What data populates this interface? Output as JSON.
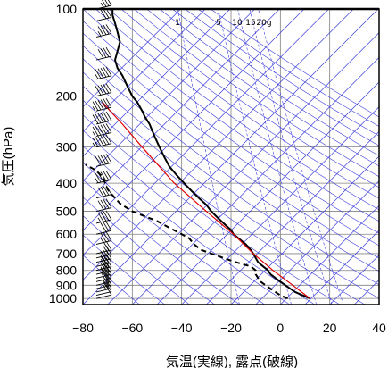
{
  "chart_data": {
    "type": "line",
    "chart_kind": "skew-T log-P (emagram)",
    "xlabel": "気温(実線), 露点(破線)",
    "ylabel": "気圧(hPa)",
    "xlim": [
      -80,
      40
    ],
    "ylim": [
      1050,
      100
    ],
    "y_scale": "log",
    "x_ticks": [
      "−80",
      "−60",
      "−40",
      "−20",
      "0",
      "20",
      "40"
    ],
    "x_tick_values": [
      -80,
      -60,
      -40,
      -20,
      0,
      20,
      40
    ],
    "y_ticks": [
      "100",
      "200",
      "300",
      "400",
      "500",
      "600",
      "700",
      "800",
      "900",
      "1000"
    ],
    "y_tick_values": [
      100,
      200,
      300,
      400,
      500,
      600,
      700,
      800,
      900,
      1000
    ],
    "mixing_ratio_labels": [
      {
        "text": "1",
        "value": 1
      },
      {
        "text": "5",
        "value": 5
      },
      {
        "text": "10",
        "value": 10
      },
      {
        "text": "15",
        "value": 15
      },
      {
        "text": "20g",
        "value": 20
      }
    ],
    "grid": true,
    "colors": {
      "temperature": "#000000",
      "dewpoint": "#000000",
      "parcel": "#e00000",
      "background_lines": "#3b3bdc",
      "grid": "#7f7f7f"
    },
    "series": [
      {
        "style": "solid",
        "points": [
          {
            "p": 1000,
            "t": 12
          },
          {
            "p": 975,
            "t": 9
          },
          {
            "p": 950,
            "t": 6
          },
          {
            "p": 925,
            "t": 4
          },
          {
            "p": 900,
            "t": 2
          },
          {
            "p": 875,
            "t": 0
          },
          {
            "p": 850,
            "t": -2
          },
          {
            "p": 825,
            "t": -4
          },
          {
            "p": 800,
            "t": -5
          },
          {
            "p": 775,
            "t": -7
          },
          {
            "p": 750,
            "t": -9
          },
          {
            "p": 725,
            "t": -10
          },
          {
            "p": 700,
            "t": -11
          },
          {
            "p": 680,
            "t": -12
          },
          {
            "p": 650,
            "t": -14
          },
          {
            "p": 620,
            "t": -17
          },
          {
            "p": 600,
            "t": -19
          },
          {
            "p": 580,
            "t": -20
          },
          {
            "p": 560,
            "t": -22
          },
          {
            "p": 540,
            "t": -24
          },
          {
            "p": 520,
            "t": -26
          },
          {
            "p": 500,
            "t": -28
          },
          {
            "p": 475,
            "t": -30
          },
          {
            "p": 450,
            "t": -33
          },
          {
            "p": 425,
            "t": -36
          },
          {
            "p": 400,
            "t": -39
          },
          {
            "p": 375,
            "t": -42
          },
          {
            "p": 350,
            "t": -45
          },
          {
            "p": 325,
            "t": -47
          },
          {
            "p": 300,
            "t": -49
          },
          {
            "p": 275,
            "t": -51
          },
          {
            "p": 250,
            "t": -53
          },
          {
            "p": 235,
            "t": -55
          },
          {
            "p": 225,
            "t": -56
          },
          {
            "p": 210,
            "t": -58
          },
          {
            "p": 200,
            "t": -60
          },
          {
            "p": 185,
            "t": -62
          },
          {
            "p": 170,
            "t": -64
          },
          {
            "p": 160,
            "t": -66
          },
          {
            "p": 150,
            "t": -67
          },
          {
            "p": 140,
            "t": -66
          },
          {
            "p": 130,
            "t": -65
          },
          {
            "p": 120,
            "t": -66
          },
          {
            "p": 112,
            "t": -67
          },
          {
            "p": 105,
            "t": -68
          },
          {
            "p": 100,
            "t": -68
          }
        ]
      },
      {
        "style": "dashed",
        "points": [
          {
            "p": 1000,
            "t": 3
          },
          {
            "p": 975,
            "t": 0
          },
          {
            "p": 950,
            "t": -2
          },
          {
            "p": 925,
            "t": -4
          },
          {
            "p": 900,
            "t": -6
          },
          {
            "p": 875,
            "t": -8
          },
          {
            "p": 850,
            "t": -9
          },
          {
            "p": 825,
            "t": -10
          },
          {
            "p": 800,
            "t": -10
          },
          {
            "p": 775,
            "t": -12
          },
          {
            "p": 750,
            "t": -18
          },
          {
            "p": 725,
            "t": -23
          },
          {
            "p": 700,
            "t": -28
          },
          {
            "p": 680,
            "t": -32
          },
          {
            "p": 650,
            "t": -35
          },
          {
            "p": 620,
            "t": -37
          },
          {
            "p": 600,
            "t": -40
          },
          {
            "p": 570,
            "t": -45
          },
          {
            "p": 540,
            "t": -50
          },
          {
            "p": 520,
            "t": -55
          },
          {
            "p": 500,
            "t": -60
          },
          {
            "p": 470,
            "t": -65
          },
          {
            "p": 440,
            "t": -68
          },
          {
            "p": 420,
            "t": -70
          },
          {
            "p": 400,
            "t": -71
          },
          {
            "p": 380,
            "t": -72
          },
          {
            "p": 360,
            "t": -75
          },
          {
            "p": 345,
            "t": -79
          }
        ]
      },
      {
        "style": "parcel",
        "points": [
          {
            "p": 1000,
            "t": 12
          },
          {
            "p": 900,
            "t": 5
          },
          {
            "p": 800,
            "t": -3
          },
          {
            "p": 700,
            "t": -11
          },
          {
            "p": 600,
            "t": -19
          },
          {
            "p": 500,
            "t": -30
          },
          {
            "p": 400,
            "t": -43
          },
          {
            "p": 300,
            "t": -56
          },
          {
            "p": 250,
            "t": -64
          },
          {
            "p": 225,
            "t": -69
          },
          {
            "p": 210,
            "t": -72
          }
        ]
      }
    ],
    "wind_barbs": [
      {
        "p": 1000,
        "speed_kt": 10
      },
      {
        "p": 975,
        "speed_kt": 10
      },
      {
        "p": 950,
        "speed_kt": 15
      },
      {
        "p": 925,
        "speed_kt": 15
      },
      {
        "p": 900,
        "speed_kt": 20
      },
      {
        "p": 875,
        "speed_kt": 20
      },
      {
        "p": 850,
        "speed_kt": 25
      },
      {
        "p": 825,
        "speed_kt": 25
      },
      {
        "p": 800,
        "speed_kt": 30
      },
      {
        "p": 775,
        "speed_kt": 30
      },
      {
        "p": 750,
        "speed_kt": 25
      },
      {
        "p": 725,
        "speed_kt": 20
      },
      {
        "p": 700,
        "speed_kt": 20
      },
      {
        "p": 650,
        "speed_kt": 25
      },
      {
        "p": 600,
        "speed_kt": 30
      },
      {
        "p": 550,
        "speed_kt": 35
      },
      {
        "p": 500,
        "speed_kt": 40
      },
      {
        "p": 450,
        "speed_kt": 40
      },
      {
        "p": 400,
        "speed_kt": 45
      },
      {
        "p": 350,
        "speed_kt": 50
      },
      {
        "p": 300,
        "speed_kt": 55
      },
      {
        "p": 275,
        "speed_kt": 55
      },
      {
        "p": 250,
        "speed_kt": 60
      },
      {
        "p": 225,
        "speed_kt": 55
      },
      {
        "p": 200,
        "speed_kt": 50
      },
      {
        "p": 175,
        "speed_kt": 45
      },
      {
        "p": 150,
        "speed_kt": 40
      },
      {
        "p": 125,
        "speed_kt": 35
      },
      {
        "p": 110,
        "speed_kt": 30
      },
      {
        "p": 100,
        "speed_kt": 25
      }
    ]
  }
}
